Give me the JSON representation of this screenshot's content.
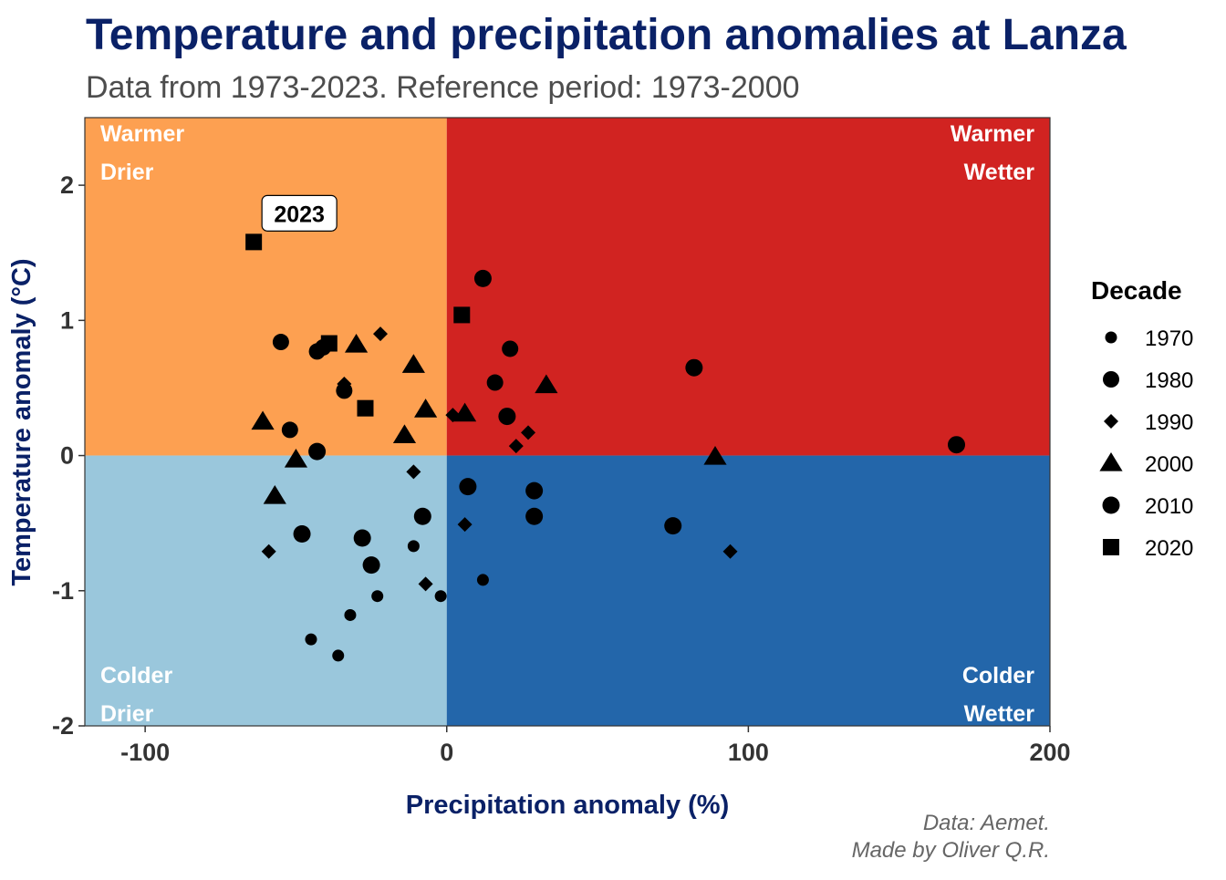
{
  "chart_data": {
    "type": "scatter",
    "title": "Temperature and precipitation anomalies at Lanza",
    "subtitle": "Data from 1973-2023. Reference period: 1973-2000",
    "xlabel": "Precipitation anomaly (%)",
    "ylabel": "Temperature anomaly (°C)",
    "xlim": [
      -120,
      200
    ],
    "ylim": [
      -2,
      2.5
    ],
    "x_ticks": [
      -100,
      0,
      100,
      200
    ],
    "y_ticks": [
      -2,
      -1,
      0,
      1,
      2
    ],
    "grid": false,
    "quadrants": [
      {
        "name": "warmer-drier",
        "line1": "Warmer",
        "line2": "Drier",
        "color": "#FDA051"
      },
      {
        "name": "warmer-wetter",
        "line1": "Warmer",
        "line2": "Wetter",
        "color": "#D12321"
      },
      {
        "name": "colder-drier",
        "line1": "Colder",
        "line2": "Drier",
        "color": "#9AC7DC"
      },
      {
        "name": "colder-wetter",
        "line1": "Colder",
        "line2": "Wetter",
        "color": "#2366AA"
      }
    ],
    "legend": {
      "title": "Decade",
      "position": "right",
      "entries": [
        {
          "label": "1970",
          "shape": "small-circle"
        },
        {
          "label": "1980",
          "shape": "circle"
        },
        {
          "label": "1990",
          "shape": "diamond"
        },
        {
          "label": "2000",
          "shape": "triangle"
        },
        {
          "label": "2010",
          "shape": "large-circle"
        },
        {
          "label": "2020",
          "shape": "square"
        }
      ]
    },
    "annotation": {
      "label": "2023",
      "x": -64,
      "y": 1.58
    },
    "series": [
      {
        "name": "1970",
        "shape": "small-circle",
        "points": [
          [
            -45,
            -1.36
          ],
          [
            -36,
            -1.48
          ],
          [
            -32,
            -1.18
          ],
          [
            -23,
            -1.04
          ],
          [
            -2,
            -1.04
          ],
          [
            -11,
            -0.67
          ],
          [
            12,
            -0.92
          ]
        ]
      },
      {
        "name": "1980",
        "shape": "circle",
        "points": [
          [
            -55,
            0.84
          ],
          [
            -52,
            0.19
          ],
          [
            -43,
            0.77
          ],
          [
            -41,
            0.8
          ],
          [
            -34,
            0.48
          ],
          [
            16,
            0.54
          ],
          [
            21,
            0.79
          ]
        ]
      },
      {
        "name": "1990",
        "shape": "diamond",
        "points": [
          [
            -22,
            0.9
          ],
          [
            -34,
            0.53
          ],
          [
            -11,
            -0.12
          ],
          [
            2,
            0.3
          ],
          [
            23,
            0.07
          ],
          [
            27,
            0.17
          ],
          [
            6,
            -0.51
          ],
          [
            -7,
            -0.95
          ],
          [
            -59,
            -0.71
          ],
          [
            94,
            -0.71
          ]
        ]
      },
      {
        "name": "2000",
        "shape": "triangle",
        "points": [
          [
            -61,
            0.25
          ],
          [
            -30,
            0.82
          ],
          [
            -11,
            0.67
          ],
          [
            -7,
            0.34
          ],
          [
            -14,
            0.15
          ],
          [
            6,
            0.31
          ],
          [
            33,
            0.52
          ],
          [
            -50,
            -0.03
          ],
          [
            -57,
            -0.3
          ],
          [
            89,
            -0.01
          ]
        ]
      },
      {
        "name": "2010",
        "shape": "large-circle",
        "points": [
          [
            -43,
            0.03
          ],
          [
            -48,
            -0.58
          ],
          [
            -28,
            -0.61
          ],
          [
            -25,
            -0.81
          ],
          [
            -8,
            -0.45
          ],
          [
            7,
            -0.23
          ],
          [
            29,
            -0.26
          ],
          [
            29,
            -0.45
          ],
          [
            12,
            1.31
          ],
          [
            20,
            0.29
          ],
          [
            75,
            -0.52
          ],
          [
            82,
            0.65
          ],
          [
            169,
            0.08
          ]
        ]
      },
      {
        "name": "2020",
        "shape": "square",
        "points": [
          [
            -39,
            0.83
          ],
          [
            -27,
            0.35
          ],
          [
            5,
            1.04
          ],
          [
            -64,
            1.58
          ]
        ]
      }
    ],
    "caption": {
      "line1": "Data: Aemet.",
      "line2": "Made by Oliver Q.R."
    }
  }
}
